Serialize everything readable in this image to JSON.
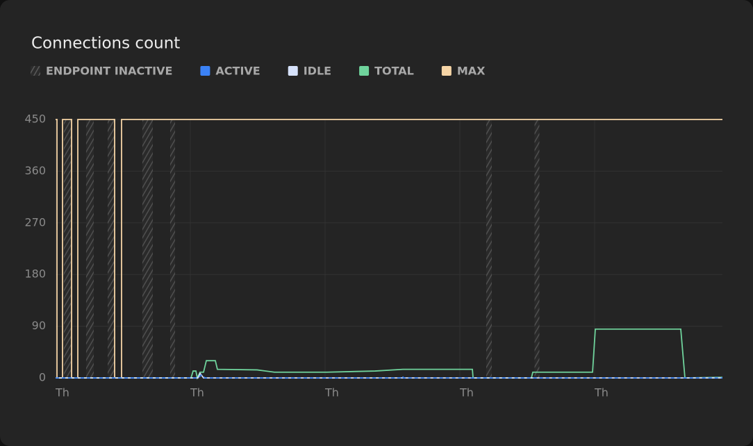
{
  "chart_data": {
    "type": "line",
    "title": "Connections count",
    "inactive": {
      "name": "ENDPOINT INACTIVE",
      "color": "#555555",
      "ranges": [
        [
          1.48,
          2.72
        ],
        [
          5.44,
          6.8
        ],
        [
          9.28,
          10.52
        ],
        [
          15.46,
          17.32
        ],
        [
          20.41,
          21.28
        ],
        [
          76.7,
          77.69
        ],
        [
          85.3,
          86.16
        ]
      ]
    },
    "series": [
      {
        "name": "ACTIVE",
        "color": "#3b82f6",
        "dashed": true,
        "x": [
          0,
          25.36,
          25.98,
          26.6,
          61.48,
          61.73,
          61.98,
          118.76
        ],
        "values": [
          0,
          0,
          5,
          0,
          0,
          3,
          0,
          0
        ]
      },
      {
        "name": "IDLE",
        "color": "#d6e2fb",
        "x": [
          0,
          25.36,
          25.73,
          26.35,
          118.76
        ],
        "values": [
          0,
          0,
          8,
          0,
          0
        ]
      },
      {
        "name": "TOTAL",
        "color": "#6fd39c",
        "x": [
          0,
          24.12,
          24.49,
          24.99,
          25.24,
          25.73,
          26.35,
          26.85,
          28.45,
          28.82,
          35.88,
          38.97,
          48.25,
          56.91,
          61.86,
          74.23,
          74.35,
          84.74,
          84.99,
          95.63,
          96.12,
          111.34,
          112.08,
          118.76
        ],
        "values": [
          0,
          0,
          12,
          12,
          0,
          10,
          10,
          30,
          30,
          15,
          14,
          10,
          10,
          12,
          15,
          15,
          0,
          0,
          10,
          10,
          85,
          85,
          0,
          1
        ]
      },
      {
        "name": "MAX",
        "color": "#f6d5a6",
        "x": [
          0,
          0.25,
          0.25,
          1.24,
          1.24,
          2.85,
          2.85,
          3.96,
          3.96,
          10.52,
          10.52,
          11.75,
          11.75,
          118.76
        ],
        "values": [
          450,
          450,
          0,
          0,
          450,
          450,
          0,
          0,
          450,
          450,
          0,
          0,
          450,
          450
        ]
      }
    ],
    "xlim": [
      0,
      118.76
    ],
    "xticks": [
      {
        "value": 0,
        "label": "Th"
      },
      {
        "value": 24,
        "label": "Th"
      },
      {
        "value": 48,
        "label": "Th"
      },
      {
        "value": 72,
        "label": "Th"
      },
      {
        "value": 96,
        "label": "Th"
      }
    ],
    "ylim": [
      0,
      450
    ],
    "yticks": [
      0,
      90,
      180,
      270,
      360,
      450
    ],
    "grid": true
  }
}
